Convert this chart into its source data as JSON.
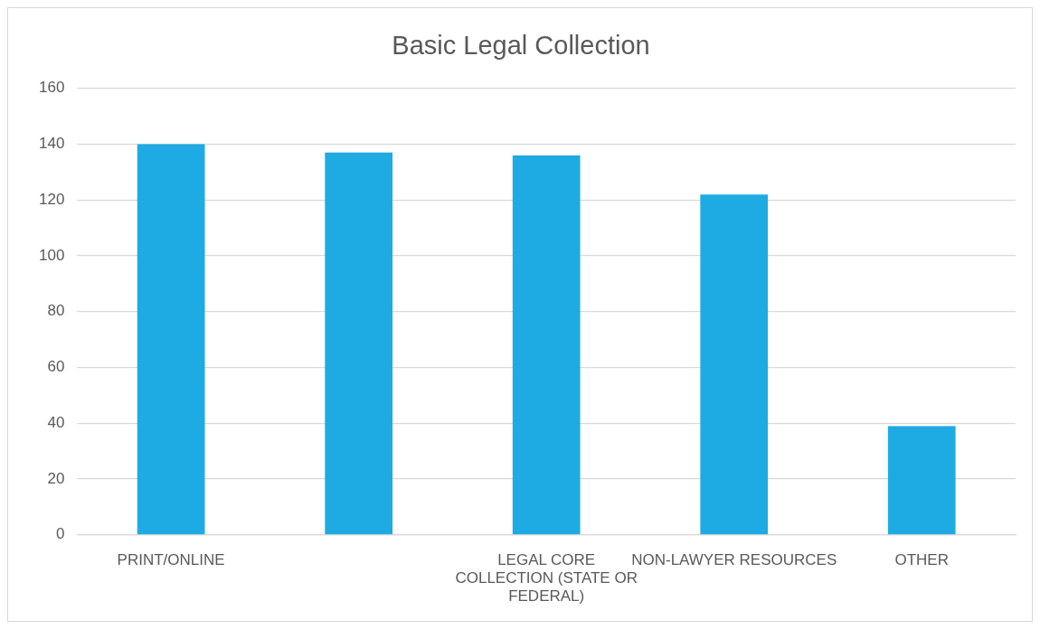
{
  "chart_data": {
    "type": "bar",
    "title": "Basic Legal Collection",
    "categories": [
      "PRINT/ONLINE",
      null,
      "LEGAL CORE COLLECTION (STATE OR FEDERAL)",
      "NON-LAWYER RESOURCES",
      "OTHER"
    ],
    "values": [
      140,
      137,
      136,
      122,
      39
    ],
    "color": "#1eabe3",
    "ylim": [
      0,
      160
    ],
    "yticks": [
      0,
      20,
      40,
      60,
      80,
      100,
      120,
      140,
      160
    ],
    "grid": "y",
    "legend": false
  }
}
